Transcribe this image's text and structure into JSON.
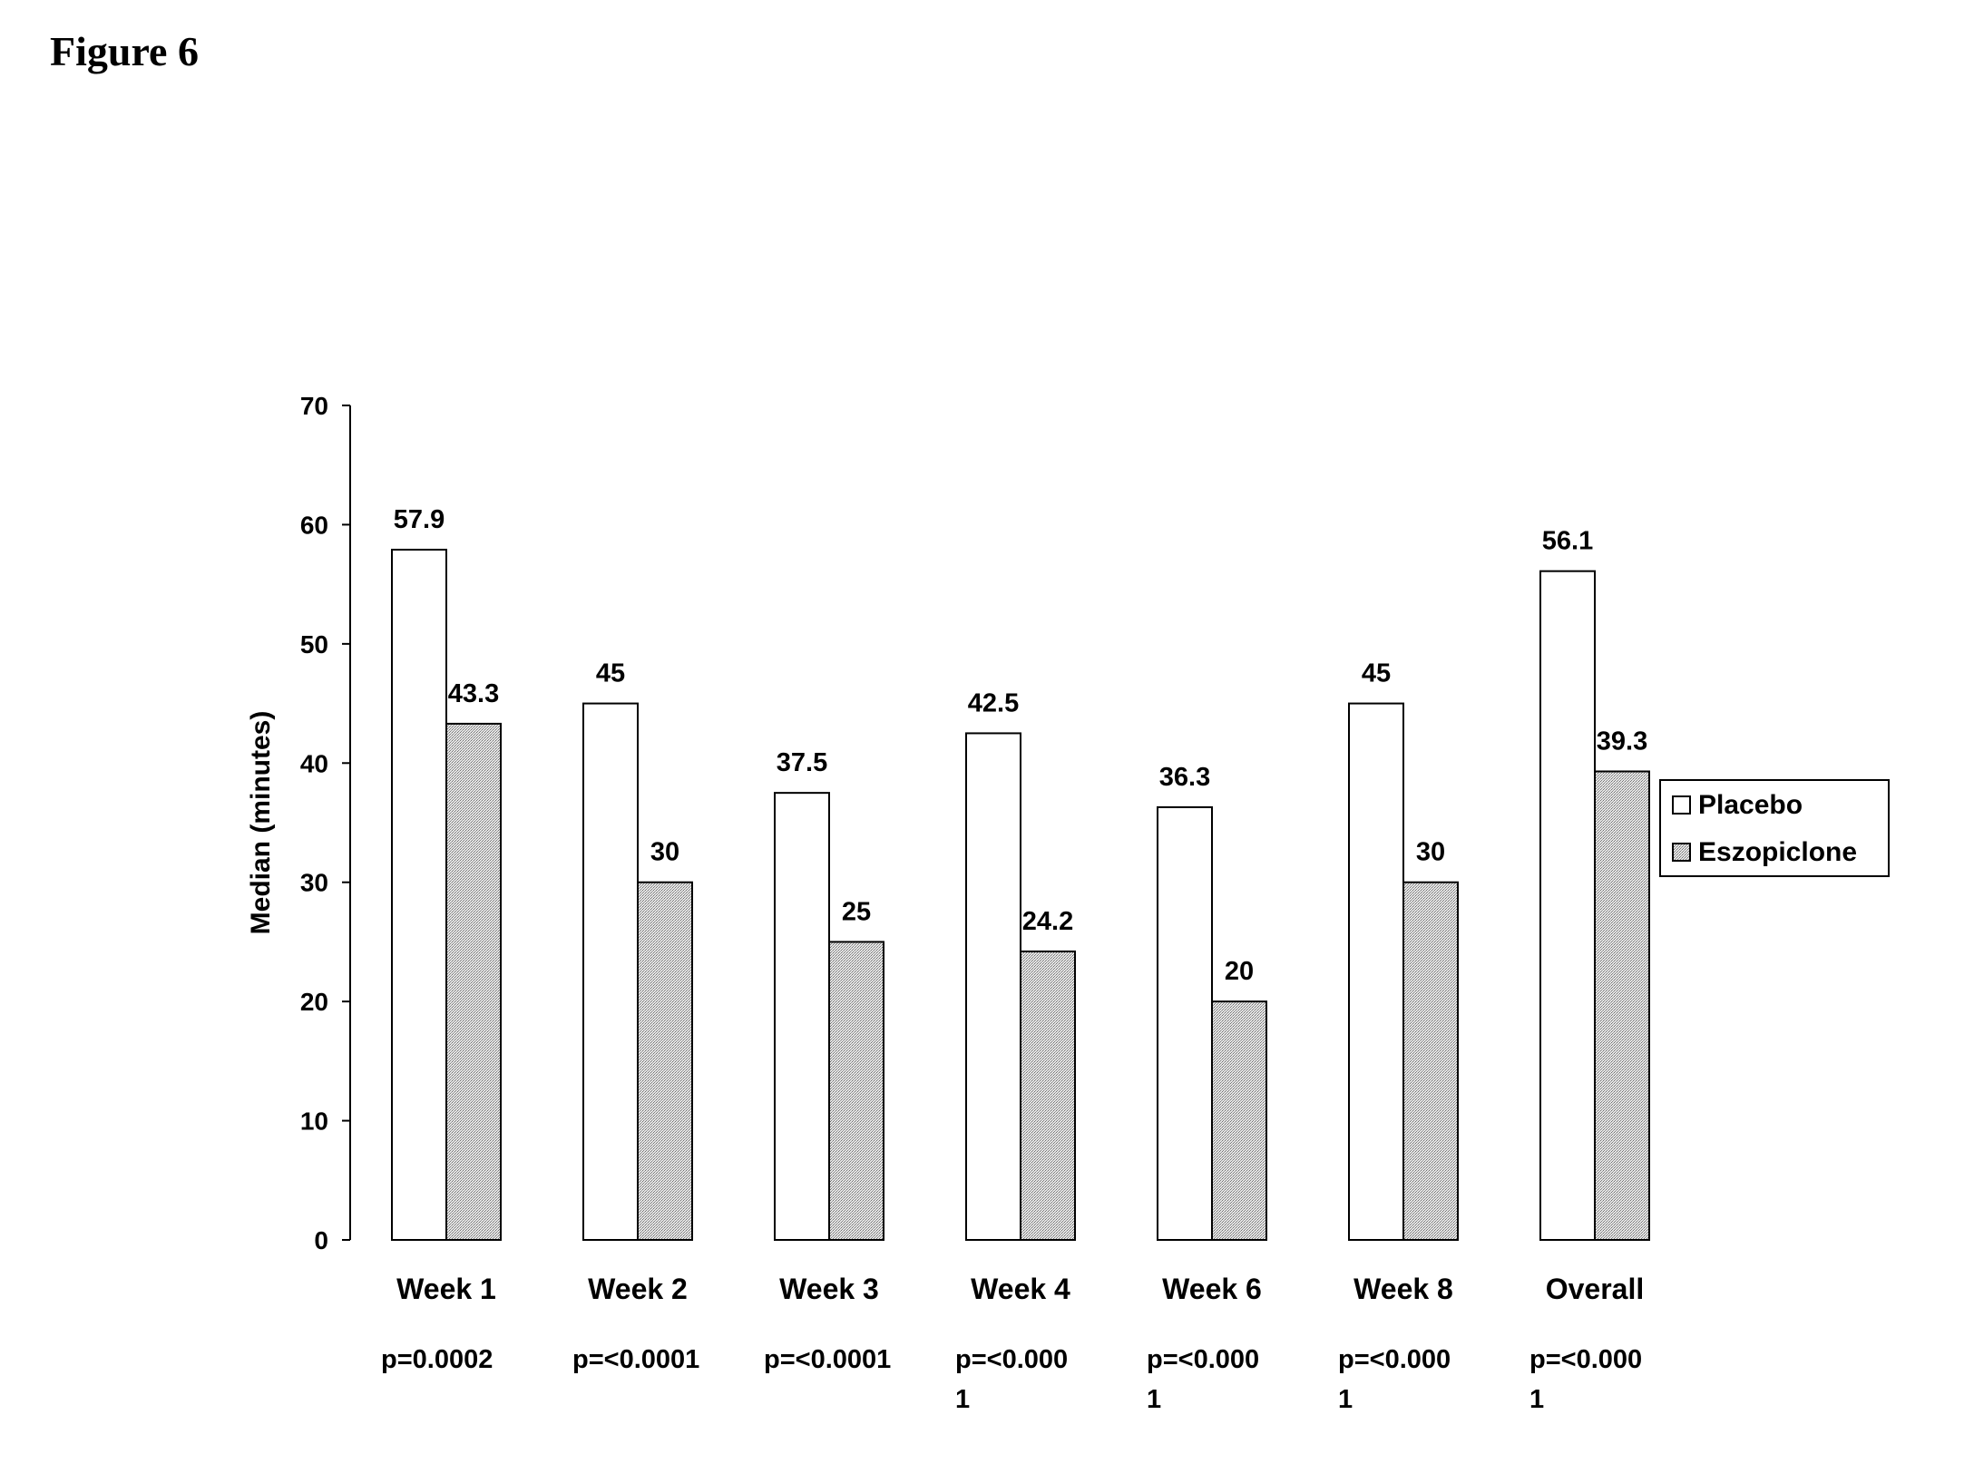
{
  "figure_title": "Figure 6",
  "chart_data": {
    "type": "bar",
    "title": "",
    "xlabel": "",
    "ylabel": "Median (minutes)",
    "ylim": [
      0,
      70
    ],
    "yticks": [
      0,
      10,
      20,
      30,
      40,
      50,
      60,
      70
    ],
    "categories": [
      "Week 1",
      "Week 2",
      "Week 3",
      "Week 4",
      "Week 6",
      "Week 8",
      "Overall"
    ],
    "p_values": [
      [
        "p=0.0002"
      ],
      [
        "p=<0.0001"
      ],
      [
        "p=<0.0001"
      ],
      [
        "p=<0.000",
        "1"
      ],
      [
        "p=<0.000",
        "1"
      ],
      [
        "p=<0.000",
        "1"
      ],
      [
        "p=<0.000",
        "1"
      ]
    ],
    "series": [
      {
        "name": "Placebo",
        "values": [
          57.9,
          45,
          37.5,
          42.5,
          36.3,
          45,
          56.1
        ],
        "labels": [
          "57.9",
          "45",
          "37.5",
          "42.5",
          "36.3",
          "45",
          "56.1"
        ],
        "fill": "#ffffff"
      },
      {
        "name": "Eszopiclone",
        "values": [
          43.3,
          30,
          25,
          24.2,
          20,
          30,
          39.3
        ],
        "labels": [
          "43.3",
          "30",
          "25",
          "24.2",
          "20",
          "30",
          "39.3"
        ],
        "fill": "hatched-gray"
      }
    ],
    "legend_position": "right",
    "grid": false
  }
}
